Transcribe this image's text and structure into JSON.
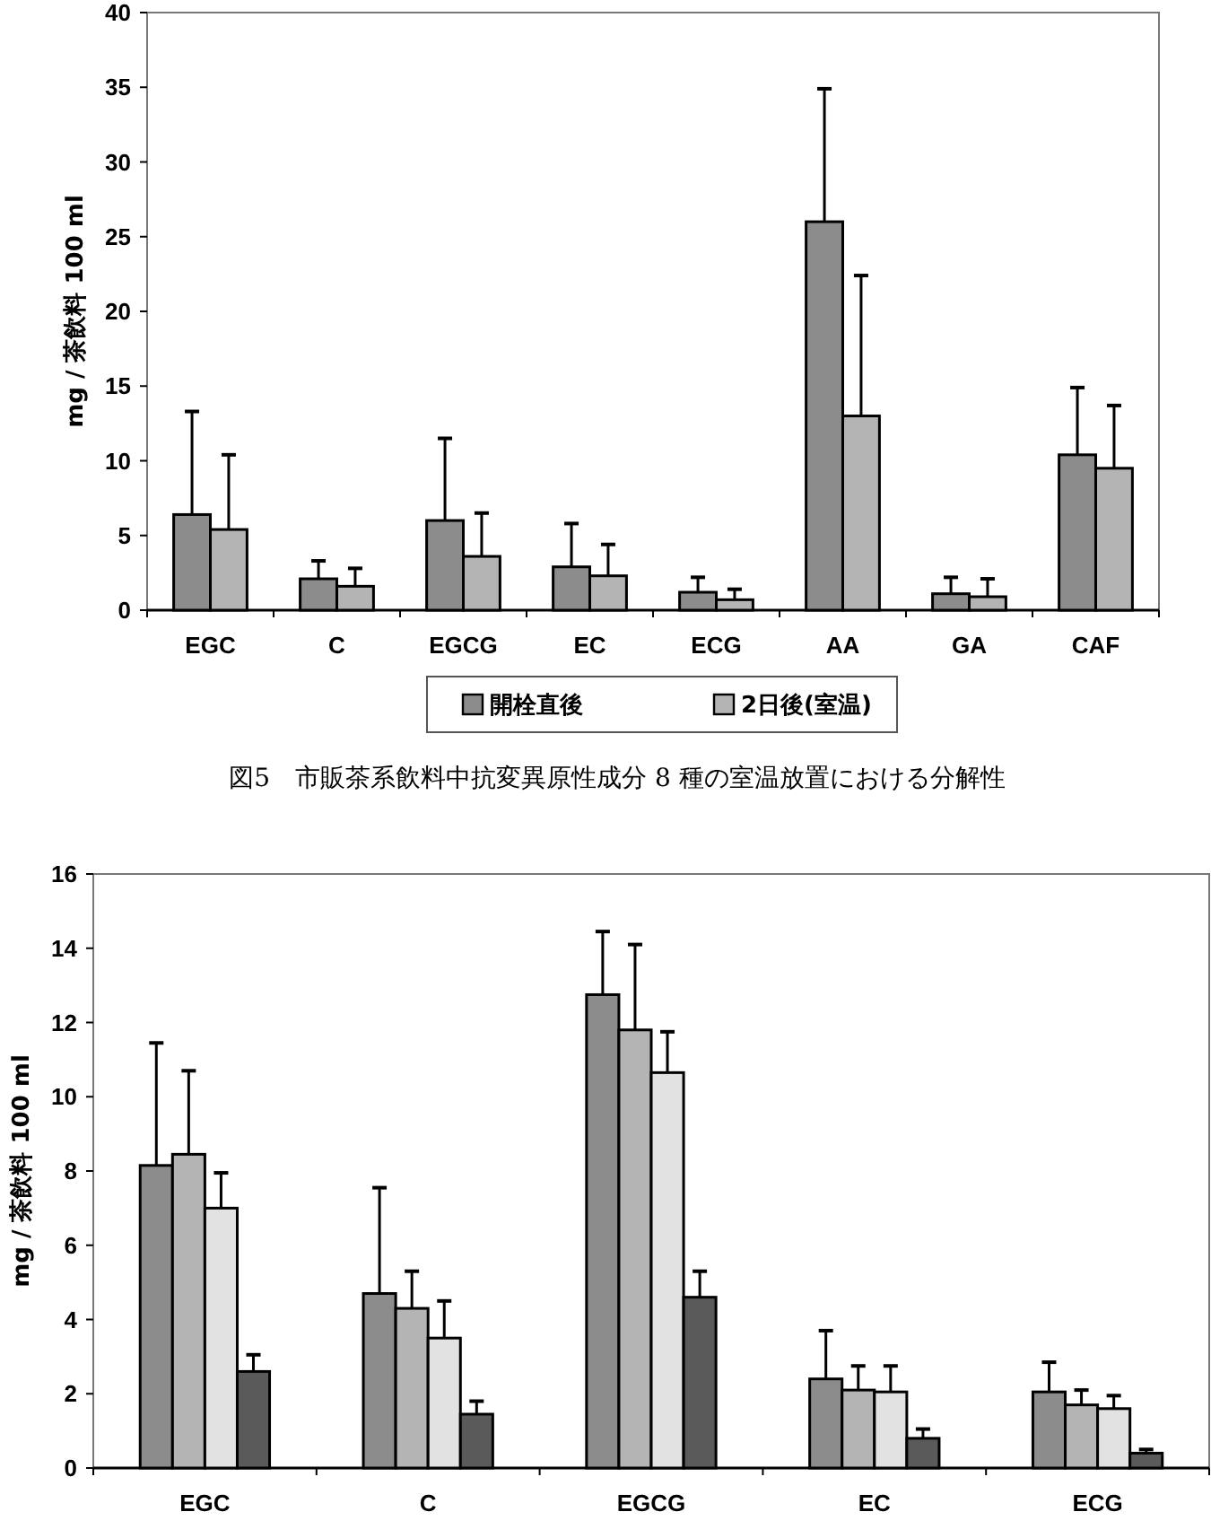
{
  "chart_data": [
    {
      "type": "bar",
      "title": "図5　市販茶系飲料中抗変異原性成分 8 種の室温放置における分解性",
      "ylabel": "mg / 茶飲料 100 ml",
      "categories": [
        "EGC",
        "C",
        "EGCG",
        "EC",
        "ECG",
        "AA",
        "GA",
        "CAF"
      ],
      "ylim": [
        0,
        40
      ],
      "yticks": [
        0,
        5,
        10,
        15,
        20,
        25,
        30,
        35,
        40
      ],
      "legend": "bottom",
      "series": [
        {
          "name": "開栓直後",
          "color": "#8c8c8c",
          "values": [
            6.4,
            2.1,
            6.0,
            2.9,
            1.2,
            26,
            1.1,
            10.4
          ],
          "errors": [
            [
              6.4,
              13.3
            ],
            [
              2.1,
              3.3
            ],
            [
              6.0,
              11.5
            ],
            [
              2.9,
              5.8
            ],
            [
              1.2,
              2.2
            ],
            [
              26,
              34.9
            ],
            [
              1.1,
              2.2
            ],
            [
              10.4,
              14.9
            ]
          ]
        },
        {
          "name": "2日後(室温)",
          "color": "#b4b4b4",
          "values": [
            5.4,
            1.6,
            3.6,
            2.3,
            0.7,
            13,
            0.9,
            9.5
          ],
          "errors": [
            [
              5.4,
              10.4
            ],
            [
              1.6,
              2.8
            ],
            [
              3.6,
              6.5
            ],
            [
              2.3,
              4.4
            ],
            [
              0.7,
              1.4
            ],
            [
              13,
              22.4
            ],
            [
              0.9,
              2.1
            ],
            [
              9.5,
              13.7
            ]
          ]
        }
      ]
    },
    {
      "type": "bar",
      "ylabel": "mg / 茶飲料 100 ml",
      "categories": [
        "EGC",
        "C",
        "EGCG",
        "EC",
        "ECG"
      ],
      "ylim": [
        0,
        16
      ],
      "yticks": [
        0,
        2,
        4,
        6,
        8,
        10,
        12,
        14,
        16
      ],
      "series": [
        {
          "color": "#8c8c8c",
          "values": [
            8.15,
            4.7,
            12.75,
            2.4,
            2.05
          ],
          "errors": [
            [
              8.15,
              11.45
            ],
            [
              4.7,
              7.55
            ],
            [
              12.75,
              14.45
            ],
            [
              2.4,
              3.7
            ],
            [
              2.05,
              2.85
            ]
          ]
        },
        {
          "color": "#b4b4b4",
          "values": [
            8.45,
            4.3,
            11.8,
            2.1,
            1.7
          ],
          "errors": [
            [
              8.45,
              10.7
            ],
            [
              4.3,
              5.3
            ],
            [
              11.8,
              14.1
            ],
            [
              2.1,
              2.75
            ],
            [
              1.7,
              2.1
            ]
          ]
        },
        {
          "color": "#e2e2e2",
          "values": [
            7.0,
            3.5,
            10.65,
            2.05,
            1.6
          ],
          "errors": [
            [
              7.0,
              7.95
            ],
            [
              3.5,
              4.5
            ],
            [
              10.65,
              11.75
            ],
            [
              2.05,
              2.75
            ],
            [
              1.6,
              1.95
            ]
          ]
        },
        {
          "color": "#5a5a5a",
          "values": [
            2.6,
            1.45,
            4.6,
            0.8,
            0.4
          ],
          "errors": [
            [
              2.6,
              3.05
            ],
            [
              1.45,
              1.8
            ],
            [
              4.6,
              5.3
            ],
            [
              0.8,
              1.05
            ],
            [
              0.4,
              0.5
            ]
          ]
        }
      ]
    }
  ]
}
